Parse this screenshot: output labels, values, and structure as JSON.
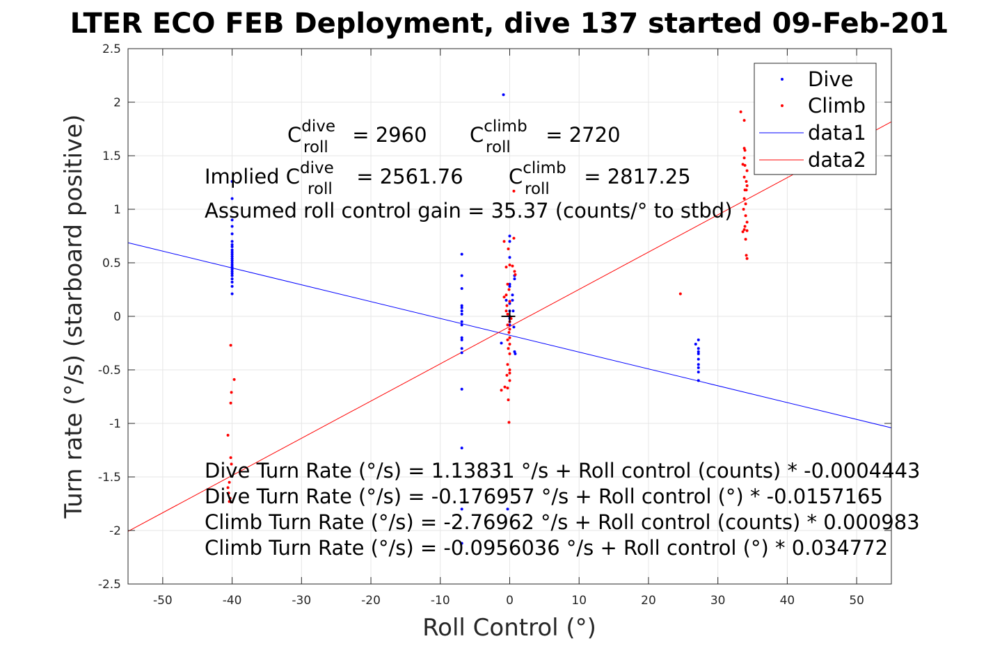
{
  "chart_data": {
    "type": "scatter",
    "title": "LTER ECO FEB Deployment, dive 137 started 09-Feb-201",
    "xlabel": "Roll Control (°)",
    "ylabel": "Turn rate (°/s) (starboard positive)",
    "xlim": [
      -55,
      55
    ],
    "ylim": [
      -2.5,
      2.5
    ],
    "xticks": [
      "-50",
      "-40",
      "-30",
      "-20",
      "-10",
      "0",
      "10",
      "20",
      "30",
      "40",
      "50"
    ],
    "yticks": [
      "-2.5",
      "-2",
      "-1.5",
      "-1",
      "-0.5",
      "0",
      "0.5",
      "1",
      "1.5",
      "2",
      "2.5"
    ],
    "grid": true,
    "legend_position": "top-right",
    "colors": {
      "dive": "#0000ff",
      "climb": "#ff0000",
      "data1": "#0000ff",
      "data2": "#ff0000",
      "center_marker": "#000000",
      "grid": "#e6e6e6",
      "axes": "#262626"
    },
    "series": [
      {
        "name": "Dive",
        "marker": "point",
        "points": [
          [
            -40,
            1.26
          ],
          [
            -40,
            1.1
          ],
          [
            -40,
            0.9
          ],
          [
            -40,
            0.84
          ],
          [
            -40,
            0.77
          ],
          [
            -40,
            0.7
          ],
          [
            -40,
            0.67
          ],
          [
            -40,
            0.65
          ],
          [
            -40,
            0.62
          ],
          [
            -40,
            0.6
          ],
          [
            -40,
            0.58
          ],
          [
            -40,
            0.56
          ],
          [
            -40,
            0.54
          ],
          [
            -40,
            0.52
          ],
          [
            -40,
            0.5
          ],
          [
            -40,
            0.48
          ],
          [
            -40,
            0.46
          ],
          [
            -40,
            0.44
          ],
          [
            -40,
            0.42
          ],
          [
            -40,
            0.4
          ],
          [
            -40,
            0.38
          ],
          [
            -40,
            0.35
          ],
          [
            -40,
            0.32
          ],
          [
            -40,
            0.28
          ],
          [
            -40,
            0.21
          ],
          [
            -6.9,
            0.58
          ],
          [
            -6.9,
            0.38
          ],
          [
            -6.9,
            0.26
          ],
          [
            -6.9,
            0.1
          ],
          [
            -6.9,
            0.08
          ],
          [
            -6.9,
            0.05
          ],
          [
            -6.9,
            0.02
          ],
          [
            -6.9,
            -0.05
          ],
          [
            -6.9,
            -0.08
          ],
          [
            -6.9,
            -0.2
          ],
          [
            -6.9,
            -0.22
          ],
          [
            -6.9,
            -0.3
          ],
          [
            -6.9,
            -0.34
          ],
          [
            -6.9,
            -0.68
          ],
          [
            -6.9,
            -1.23
          ],
          [
            -6.9,
            -1.8
          ],
          [
            -6.9,
            -2.12
          ],
          [
            -0.9,
            2.07
          ],
          [
            -1.2,
            -0.25
          ],
          [
            0,
            0.75
          ],
          [
            0,
            0.7
          ],
          [
            0,
            0.55
          ],
          [
            0,
            0.3
          ],
          [
            0,
            0.28
          ],
          [
            0,
            0.12
          ],
          [
            0,
            0.05
          ],
          [
            0,
            0
          ],
          [
            0,
            -0.02
          ],
          [
            0,
            -0.05
          ],
          [
            0,
            -0.08
          ],
          [
            -0.5,
            0.15
          ],
          [
            0.5,
            0.05
          ],
          [
            0.7,
            0.38
          ],
          [
            0.7,
            0.35
          ],
          [
            0.4,
            0.2
          ],
          [
            0.4,
            0.15
          ],
          [
            0.6,
            -0.1
          ],
          [
            0.7,
            -0.33
          ],
          [
            0.8,
            -0.35
          ],
          [
            -0.3,
            -1.8
          ],
          [
            26.8,
            -0.26
          ],
          [
            27.2,
            -0.22
          ],
          [
            27.2,
            -0.3
          ],
          [
            27.2,
            -0.33
          ],
          [
            27.2,
            -0.35
          ],
          [
            27.2,
            -0.4
          ],
          [
            27.2,
            -0.45
          ],
          [
            27.2,
            -0.48
          ],
          [
            27.2,
            -0.52
          ],
          [
            27.2,
            -0.6
          ]
        ]
      },
      {
        "name": "Climb",
        "marker": "point",
        "points": [
          [
            -40.2,
            -0.27
          ],
          [
            -39.7,
            -0.59
          ],
          [
            -40.1,
            -0.71
          ],
          [
            -40.2,
            -0.81
          ],
          [
            -40.6,
            -1.11
          ],
          [
            -40.2,
            -1.32
          ],
          [
            -40.1,
            -1.38
          ],
          [
            -40.4,
            -1.55
          ],
          [
            -40.6,
            -1.6
          ],
          [
            -40.5,
            -1.65
          ],
          [
            -40.3,
            -1.7
          ],
          [
            -40.4,
            -1.73
          ],
          [
            -0.8,
            0.7
          ],
          [
            -0.2,
            0.63
          ],
          [
            0,
            0.48
          ],
          [
            0.4,
            0.47
          ],
          [
            -0.5,
            0.46
          ],
          [
            0.7,
            0.42
          ],
          [
            0.8,
            0.39
          ],
          [
            -0.3,
            0.3
          ],
          [
            -0.1,
            0.25
          ],
          [
            -0.5,
            0.2
          ],
          [
            -0.8,
            0.18
          ],
          [
            0,
            0.14
          ],
          [
            -0.4,
            0.1
          ],
          [
            -0.5,
            0.05
          ],
          [
            -0.3,
            0.02
          ],
          [
            0.2,
            -0.02
          ],
          [
            0,
            -0.05
          ],
          [
            -0.3,
            -0.08
          ],
          [
            0,
            -0.12
          ],
          [
            -0.1,
            -0.15
          ],
          [
            0,
            -0.2
          ],
          [
            -0.3,
            -0.22
          ],
          [
            0,
            -0.26
          ],
          [
            -0.2,
            -0.3
          ],
          [
            0,
            -0.35
          ],
          [
            -0.3,
            -0.45
          ],
          [
            0,
            -0.5
          ],
          [
            0,
            -0.53
          ],
          [
            -0.4,
            -0.55
          ],
          [
            0,
            -0.6
          ],
          [
            -0.7,
            -0.66
          ],
          [
            -0.3,
            -0.67
          ],
          [
            -1.2,
            -0.69
          ],
          [
            -0.2,
            -0.78
          ],
          [
            -0.1,
            -0.99
          ],
          [
            0.6,
            0.73
          ],
          [
            0.6,
            1.17
          ],
          [
            24.6,
            0.21
          ],
          [
            33.3,
            1.91
          ],
          [
            33.8,
            1.83
          ],
          [
            33.8,
            1.57
          ],
          [
            33.9,
            1.55
          ],
          [
            33.8,
            1.48
          ],
          [
            33.6,
            1.42
          ],
          [
            33.9,
            1.41
          ],
          [
            34.2,
            1.36
          ],
          [
            33.8,
            1.3
          ],
          [
            34.1,
            1.26
          ],
          [
            34.2,
            1.22
          ],
          [
            33.9,
            1.18
          ],
          [
            34.1,
            1.18
          ],
          [
            33.8,
            1.1
          ],
          [
            34,
            1.05
          ],
          [
            33.7,
            1
          ],
          [
            34,
            0.94
          ],
          [
            34.2,
            0.88
          ],
          [
            33.9,
            0.84
          ],
          [
            33.8,
            0.81
          ],
          [
            34.2,
            0.8
          ],
          [
            33.6,
            0.79
          ],
          [
            34,
            0.72
          ],
          [
            34.1,
            0.57
          ],
          [
            34.2,
            0.54
          ]
        ]
      },
      {
        "name": "data1",
        "type": "line",
        "x": [
          -55,
          55
        ],
        "y": [
          0.6874,
          -1.0413
        ]
      },
      {
        "name": "data2",
        "type": "line",
        "x": [
          -55,
          55
        ],
        "y": [
          -2.0081,
          1.8169
        ]
      }
    ],
    "center_marker": {
      "x": 0,
      "y": 0,
      "x_span": [
        -1.2,
        0.8
      ],
      "y_span": [
        -0.06,
        0.06
      ]
    },
    "annotations": {
      "c_dive": {
        "prefix": "C",
        "sup": "dive",
        "sub": "roll",
        "rest": " = 2960"
      },
      "c_climb": {
        "prefix": "C",
        "sup": "climb",
        "sub": "roll",
        "rest": " = 2720"
      },
      "implied_dive": {
        "prefix": "Implied C",
        "sup": "dive",
        "sub": "roll",
        "rest": " = 2561.76"
      },
      "implied_climb": {
        "prefix": "C",
        "sup": "climb",
        "sub": "roll",
        "rest": " = 2817.25"
      },
      "gain": "Assumed roll control gain = 35.37 (counts/° to stbd)",
      "eq1": "Dive Turn Rate (°/s) = 1.13831 °/s + Roll control (counts) * -0.0004443",
      "eq2": "Dive Turn Rate (°/s) = -0.176957 °/s + Roll control (°) * -0.0157165",
      "eq3": "Climb Turn Rate (°/s) = -2.76962 °/s + Roll control (counts) * 0.000983",
      "eq4": "Climb Turn Rate (°/s) = -0.0956036 °/s + Roll control (°) * 0.034772"
    }
  }
}
